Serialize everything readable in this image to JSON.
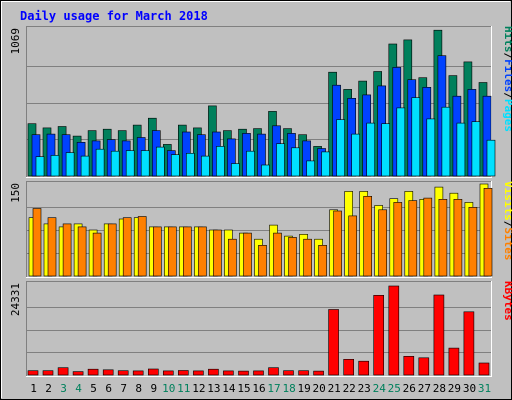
{
  "chart_data": {
    "type": "bar",
    "title": "Daily usage for March 2018",
    "categories": [
      "1",
      "2",
      "3",
      "4",
      "5",
      "6",
      "7",
      "8",
      "9",
      "10",
      "11",
      "12",
      "13",
      "14",
      "15",
      "16",
      "17",
      "18",
      "19",
      "20",
      "21",
      "22",
      "23",
      "24",
      "25",
      "26",
      "27",
      "28",
      "29",
      "30",
      "31"
    ],
    "weekend_days": [
      "3",
      "4",
      "10",
      "11",
      "17",
      "18",
      "24",
      "25",
      "31"
    ],
    "panels": [
      {
        "id": "top",
        "ymax_label": "1069",
        "ymax": 1069,
        "legend": [
          "Pages",
          "Files",
          "Hits"
        ],
        "series": [
          {
            "name": "Hits",
            "color": "#00805c",
            "values": [
              380,
              350,
              360,
              290,
              330,
              340,
              330,
              370,
              420,
              230,
              370,
              350,
              510,
              330,
              340,
              345,
              470,
              345,
              300,
              215,
              755,
              630,
              690,
              760,
              960,
              990,
              715,
              1060,
              730,
              830,
              680
            ]
          },
          {
            "name": "Files",
            "color": "#0042ff",
            "values": [
              300,
              305,
              300,
              245,
              255,
              265,
              255,
              280,
              330,
              185,
              320,
              300,
              320,
              270,
              310,
              305,
              365,
              310,
              255,
              200,
              660,
              565,
              590,
              655,
              790,
              700,
              645,
              875,
              580,
              630,
              580
            ]
          },
          {
            "name": "Pages",
            "color": "#00e0ff",
            "values": [
              140,
              150,
              170,
              145,
              195,
              180,
              185,
              185,
              210,
              155,
              165,
              145,
              215,
              90,
              180,
              80,
              235,
              205,
              110,
              175,
              410,
              305,
              385,
              380,
              495,
              570,
              415,
              500,
              385,
              395,
              260
            ]
          }
        ]
      },
      {
        "id": "middle",
        "ymax_label": "150",
        "ymax": 150,
        "legend": [
          "Sites",
          "Visits"
        ],
        "series": [
          {
            "name": "Visits",
            "color": "#ffff00",
            "values": [
              95,
              85,
              80,
              85,
              75,
              85,
              93,
              95,
              80,
              80,
              80,
              80,
              75,
              75,
              70,
              60,
              83,
              65,
              68,
              60,
              108,
              138,
              138,
              115,
              126,
              138,
              125,
              145,
              135,
              120,
              150
            ]
          },
          {
            "name": "Sites",
            "color": "#ff8000",
            "values": [
              110,
              95,
              85,
              80,
              70,
              85,
              95,
              97,
              80,
              80,
              80,
              80,
              75,
              60,
              70,
              50,
              70,
              63,
              60,
              50,
              106,
              98,
              130,
              108,
              120,
              123,
              127,
              125,
              125,
              112,
              143
            ]
          }
        ]
      },
      {
        "id": "bottom",
        "ymax_label": "24331",
        "ymax": 24331,
        "legend": [
          "KBytes"
        ],
        "series": [
          {
            "name": "KBytes",
            "color": "#ff0000",
            "values": [
              1150,
              1150,
              1950,
              900,
              1550,
              1400,
              1150,
              1100,
              1600,
              1100,
              1200,
              1100,
              1550,
              1100,
              1050,
              1100,
              1950,
              1150,
              1150,
              1050,
              17500,
              4200,
              3700,
              21300,
              23800,
              5000,
              4600,
              21400,
              7200,
              16900,
              3200
            ]
          }
        ]
      }
    ]
  }
}
